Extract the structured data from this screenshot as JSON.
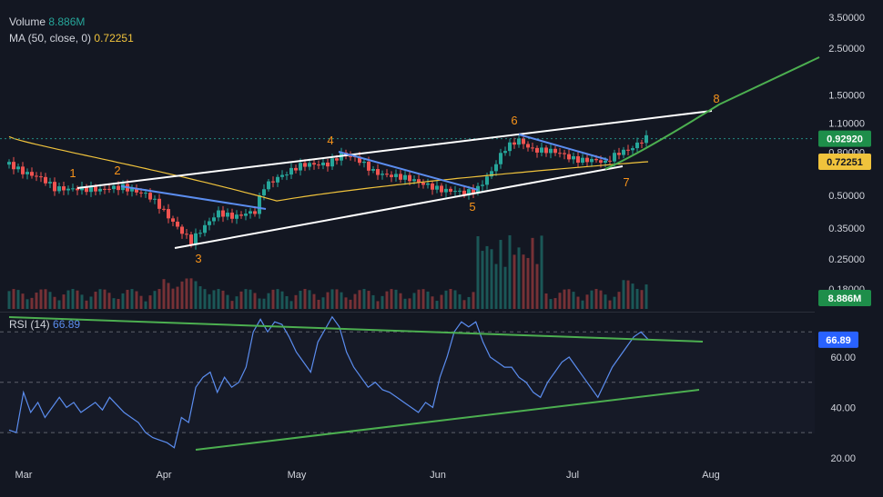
{
  "legend": {
    "volume_label": "Volume",
    "volume_value": "8.886M",
    "ma_label": "MA (50, close, 0)",
    "ma_value": "0.72251",
    "rsi_label": "RSI (14)",
    "rsi_value": "66.89"
  },
  "colors": {
    "background": "#131722",
    "up": "#26a69a",
    "down": "#ef5350",
    "ma": "#f0c33c",
    "rsi": "#5b8def",
    "trend_white": "#ffffff",
    "trend_blue": "#5b8def",
    "trend_green": "#4caf50",
    "wave_label": "#f7931a",
    "price_tag": "#1e8e4a",
    "ma_tag": "#f0c33c"
  },
  "chart_data": [
    {
      "type": "candlestick",
      "scale": "log",
      "x": [
        "Mar",
        "Apr",
        "May",
        "Jun",
        "Jul",
        "Aug"
      ],
      "y_ticks": [
        "3.50000",
        "2.50000",
        "1.50000",
        "1.10000",
        "0.80000",
        "0.50000",
        "0.35000",
        "0.25000",
        "0.18000"
      ],
      "last_price": "0.92920",
      "ma_value": "0.72251",
      "volume_tag": "8.886M",
      "wave_labels": [
        "1",
        "2",
        "3",
        "4",
        "5",
        "6",
        "7",
        "8"
      ],
      "series": [
        {
          "name": "MA (50, close, 0)",
          "values_start": 0.95,
          "values_low": 0.47,
          "values_end": 0.72251
        }
      ],
      "grid": false
    },
    {
      "type": "line",
      "y_ticks": [
        "60.00",
        "40.00",
        "20.00"
      ],
      "levels": [
        70,
        50,
        30
      ],
      "last_value": "66.89",
      "series": [
        {
          "name": "RSI (14)",
          "values": [
            31,
            30,
            46,
            38,
            42,
            36,
            40,
            44,
            40,
            42,
            38,
            40,
            42,
            39,
            44,
            41,
            38,
            36,
            34,
            30,
            28,
            27,
            26,
            24,
            36,
            34,
            48,
            52,
            54,
            46,
            52,
            48,
            50,
            56,
            70,
            75,
            70,
            74,
            73,
            68,
            62,
            58,
            54,
            66,
            71,
            76,
            72,
            62,
            56,
            52,
            48,
            50,
            47,
            46,
            44,
            42,
            40,
            38,
            42,
            40,
            52,
            60,
            70,
            74,
            72,
            74,
            66,
            60,
            58,
            56,
            56,
            52,
            50,
            46,
            44,
            50,
            54,
            58,
            60,
            56,
            52,
            48,
            44,
            50,
            56,
            60,
            64,
            68,
            70,
            67
          ]
        }
      ]
    }
  ]
}
